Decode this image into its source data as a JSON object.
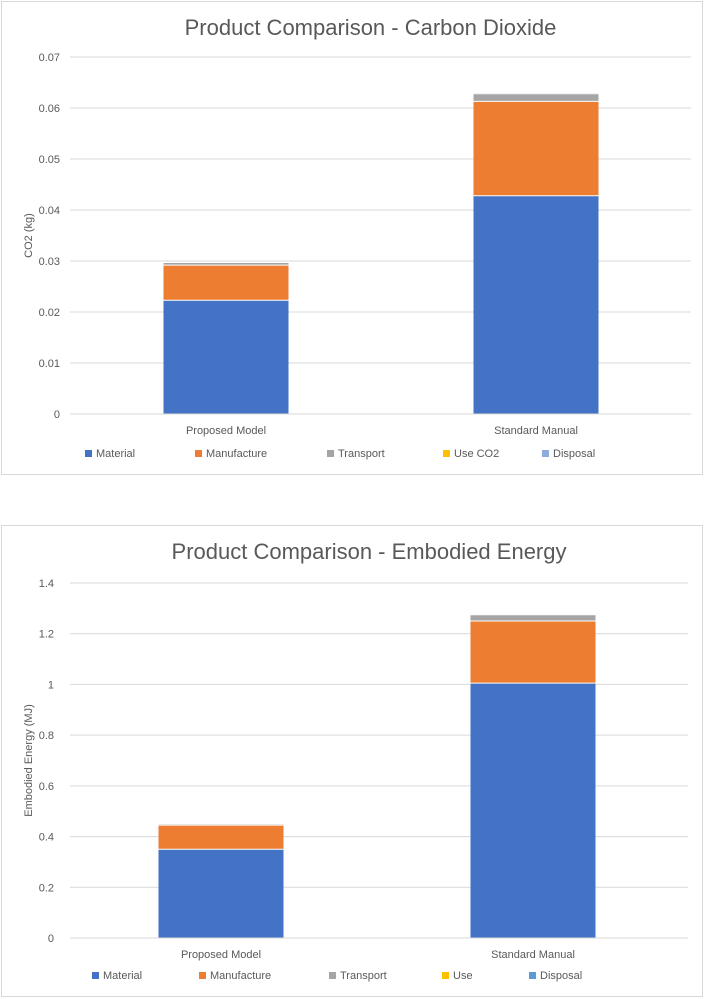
{
  "chart_data": [
    {
      "type": "bar",
      "stacked": true,
      "title": "Product Comparison - Carbon Dioxide",
      "xlabel": "",
      "ylabel": "CO2 (kg)",
      "ylim": [
        0,
        0.07
      ],
      "yticks": [
        0,
        0.01,
        0.02,
        0.03,
        0.04,
        0.05,
        0.06,
        0.07
      ],
      "ytick_labels": [
        "0",
        "0.01",
        "0.02",
        "0.03",
        "0.04",
        "0.05",
        "0.06",
        "0.07"
      ],
      "grid": true,
      "legend_position": "bottom",
      "categories": [
        "Proposed Model",
        "Standard Manual"
      ],
      "series": [
        {
          "name": "Material",
          "color": "#4472c4",
          "values": [
            0.0223,
            0.0428
          ]
        },
        {
          "name": "Manufacture",
          "color": "#ed7d31",
          "values": [
            0.0069,
            0.0185
          ]
        },
        {
          "name": "Transport",
          "color": "#a5a5a5",
          "values": [
            0.0005,
            0.0015
          ]
        },
        {
          "name": "Use CO2",
          "color": "#ffc000",
          "values": [
            0,
            0
          ]
        },
        {
          "name": "Disposal",
          "color": "#8faadc",
          "values": [
            0.0001,
            0.0001
          ]
        }
      ]
    },
    {
      "type": "bar",
      "stacked": true,
      "title": "Product Comparison - Embodied Energy",
      "xlabel": "",
      "ylabel": "Embodied Energy (MJ)",
      "ylim": [
        0,
        1.4
      ],
      "yticks": [
        0,
        0.2,
        0.4,
        0.6,
        0.8,
        1,
        1.2,
        1.4
      ],
      "ytick_labels": [
        "0",
        "0.2",
        "0.4",
        "0.6",
        "0.8",
        "1",
        "1.2",
        "1.4"
      ],
      "grid": true,
      "legend_position": "bottom",
      "categories": [
        "Proposed Model",
        "Standard Manual"
      ],
      "series": [
        {
          "name": "Material",
          "color": "#4472c4",
          "values": [
            0.35,
            1.005
          ]
        },
        {
          "name": "Manufacture",
          "color": "#ed7d31",
          "values": [
            0.095,
            0.245
          ]
        },
        {
          "name": "Transport",
          "color": "#a5a5a5",
          "values": [
            0.005,
            0.025
          ]
        },
        {
          "name": "Use",
          "color": "#ffc000",
          "values": [
            0,
            0
          ]
        },
        {
          "name": "Disposal",
          "color": "#5b9bd5",
          "values": [
            0.001,
            0.001
          ]
        }
      ]
    }
  ]
}
